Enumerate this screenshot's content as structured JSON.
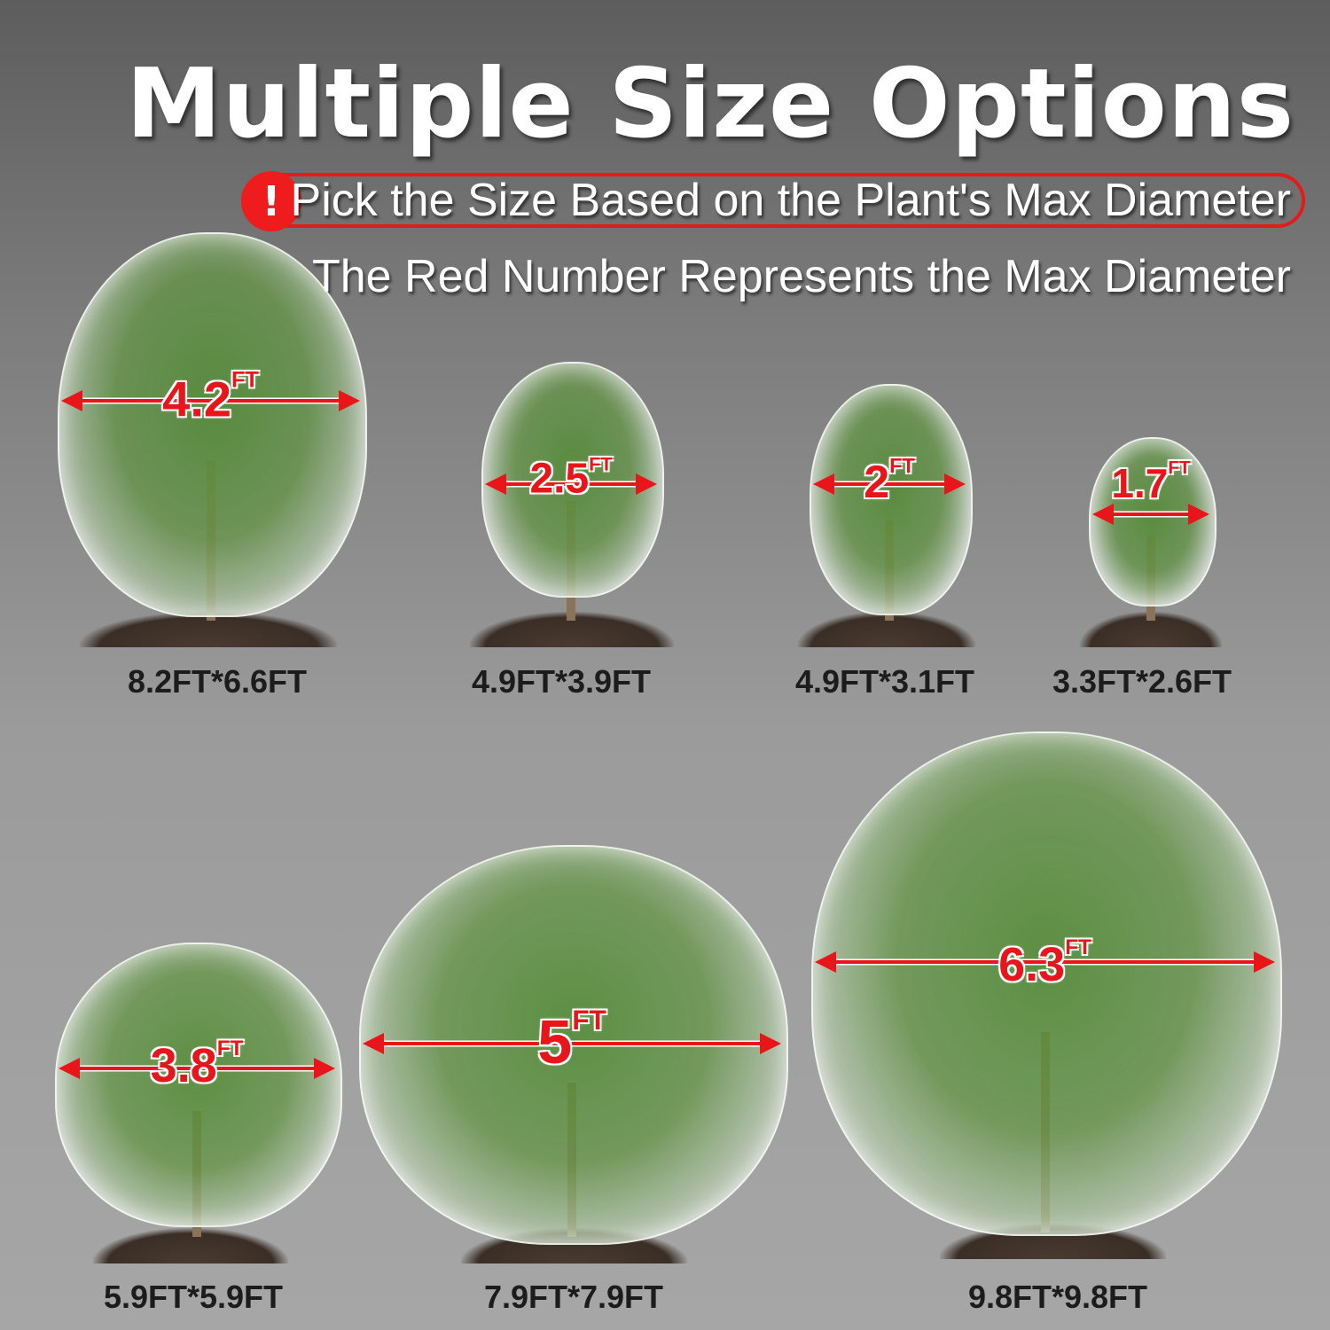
{
  "header": {
    "title": "Multiple Size Options",
    "notice_icon": "exclamation-icon",
    "notice": "Pick the Size Based on the Plant's Max Diameter",
    "subtitle": "The Red Number Represents the Max Diameter"
  },
  "colors": {
    "accent_red": "#e8161b",
    "text_dark": "#1c1c1c"
  },
  "plants": [
    {
      "diameter": "4.2",
      "unit": "FT",
      "size": "8.2FT*6.6FT"
    },
    {
      "diameter": "2.5",
      "unit": "FT",
      "size": "4.9FT*3.9FT"
    },
    {
      "diameter": "2",
      "unit": "FT",
      "size": "4.9FT*3.1FT"
    },
    {
      "diameter": "1.7",
      "unit": "FT",
      "size": "3.3FT*2.6FT"
    },
    {
      "diameter": "3.8",
      "unit": "FT",
      "size": "5.9FT*5.9FT"
    },
    {
      "diameter": "5",
      "unit": "FT",
      "size": "7.9FT*7.9FT"
    },
    {
      "diameter": "6.3",
      "unit": "FT",
      "size": "9.8FT*9.8FT"
    }
  ]
}
